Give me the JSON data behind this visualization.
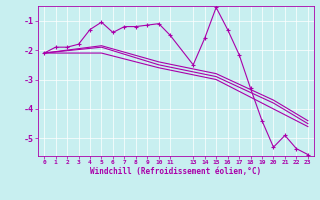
{
  "xlabel": "Windchill (Refroidissement éolien,°C)",
  "background_color": "#c8eff0",
  "line_color": "#aa00aa",
  "xlim": [
    -0.5,
    23.5
  ],
  "ylim": [
    -5.6,
    -0.5
  ],
  "yticks": [
    -1,
    -2,
    -3,
    -4,
    -5
  ],
  "xtick_positions": [
    0,
    1,
    2,
    3,
    4,
    5,
    6,
    7,
    8,
    9,
    10,
    11,
    13,
    14,
    15,
    16,
    17,
    18,
    19,
    20,
    21,
    22,
    23
  ],
  "xtick_labels": [
    "0",
    "1",
    "2",
    "3",
    "4",
    "5",
    "6",
    "7",
    "8",
    "9",
    "10",
    "11",
    "13",
    "14",
    "15",
    "16",
    "17",
    "18",
    "19",
    "20",
    "21",
    "22",
    "23"
  ],
  "series": [
    [
      0,
      -2.1,
      1,
      -1.9,
      2,
      -1.9,
      3,
      -1.8,
      4,
      -1.3,
      5,
      -1.05,
      6,
      -1.4,
      7,
      -1.2,
      8,
      -1.2,
      9,
      -1.15,
      10,
      -1.1,
      11,
      -1.5,
      13,
      -2.5,
      14,
      -1.6,
      15,
      -0.55,
      16,
      -1.3,
      17,
      -2.15,
      18,
      -3.3,
      19,
      -4.4,
      20,
      -5.3,
      21,
      -4.9,
      22,
      -5.35,
      23,
      -5.55
    ],
    [
      0,
      -2.1,
      5,
      -1.9,
      10,
      -2.5,
      15,
      -2.9,
      20,
      -3.8,
      23,
      -4.5
    ],
    [
      0,
      -2.1,
      5,
      -1.85,
      10,
      -2.4,
      15,
      -2.8,
      20,
      -3.7,
      23,
      -4.4
    ],
    [
      0,
      -2.1,
      5,
      -2.1,
      10,
      -2.6,
      15,
      -3.0,
      20,
      -4.0,
      23,
      -4.6
    ]
  ],
  "marker_series": 0,
  "marker": "+",
  "markersize": 3,
  "linewidth": 0.8,
  "ylabel_fontsize": 6,
  "xlabel_fontsize": 5.5,
  "tick_fontsize": 4.5,
  "grid_color": "#ffffff",
  "grid_linewidth": 0.5
}
